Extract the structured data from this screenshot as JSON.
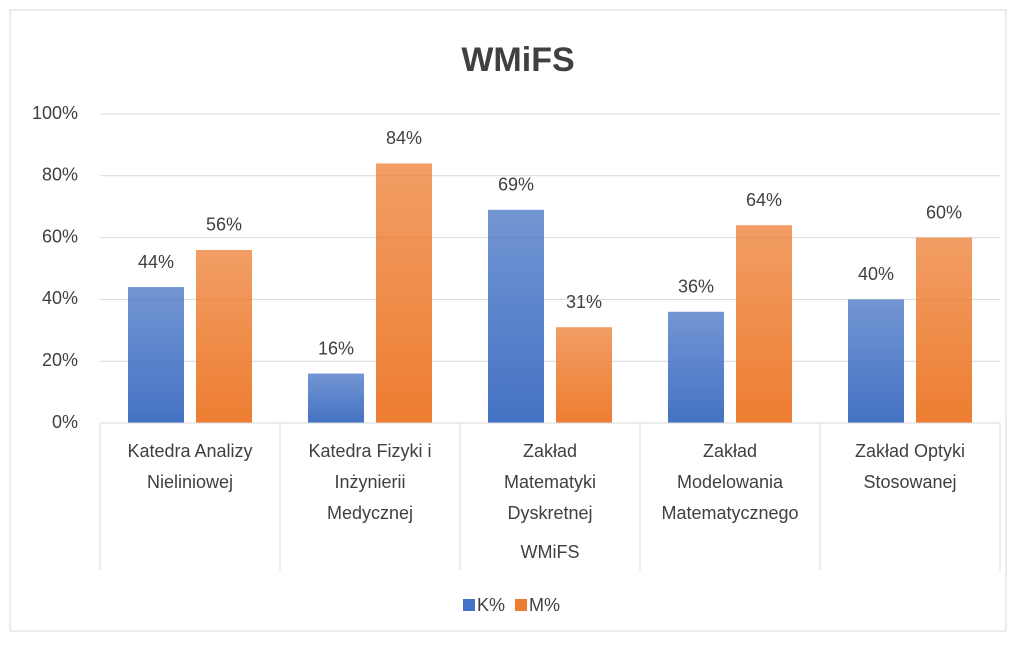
{
  "chart_data": {
    "type": "bar",
    "title": "WMiFS",
    "group_label": "WMiFS",
    "categories": [
      "Katedra Analizy Nieliniowej",
      "Katedra Fizyki i Inżynierii Medycznej",
      "Zakład Matematyki Dyskretnej",
      "Zakład Modelowania Matematycznego",
      "Zakład Optyki Stosowanej"
    ],
    "series": [
      {
        "name": "K%",
        "color": "#4472c4",
        "values": [
          44,
          16,
          69,
          36,
          40
        ],
        "value_labels": [
          "44%",
          "16%",
          "69%",
          "36%",
          "40%"
        ]
      },
      {
        "name": "M%",
        "color": "#ed7d31",
        "values": [
          56,
          84,
          31,
          64,
          60
        ],
        "value_labels": [
          "56%",
          "84%",
          "31%",
          "64%",
          "60%"
        ]
      }
    ],
    "ylim": [
      0,
      100
    ],
    "yticks": [
      {
        "value": 0,
        "label": "0%"
      },
      {
        "value": 20,
        "label": "20%"
      },
      {
        "value": 40,
        "label": "40%"
      },
      {
        "value": 60,
        "label": "60%"
      },
      {
        "value": 80,
        "label": "80%"
      },
      {
        "value": 100,
        "label": "100%"
      }
    ],
    "grid": true,
    "legend": "bottom"
  }
}
